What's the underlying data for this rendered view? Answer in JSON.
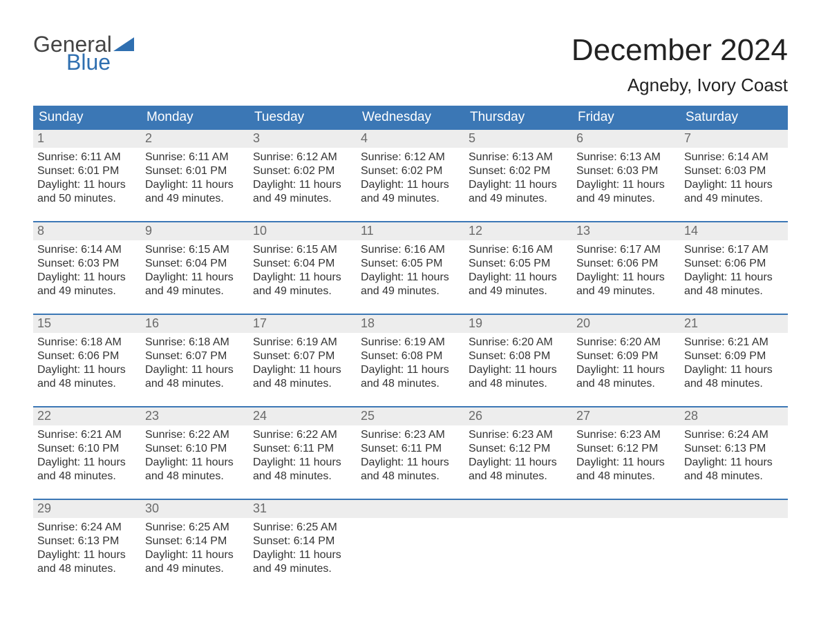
{
  "logo": {
    "text_general": "General",
    "text_blue": "Blue",
    "tri_color": "#2f6fb0"
  },
  "title": "December 2024",
  "location": "Agneby, Ivory Coast",
  "colors": {
    "header_bg": "#3b77b5",
    "header_text": "#ffffff",
    "daynum_bg": "#ededed",
    "daynum_text": "#6a6a6a",
    "body_text": "#333333",
    "week_border": "#3b77b5"
  },
  "dow": [
    "Sunday",
    "Monday",
    "Tuesday",
    "Wednesday",
    "Thursday",
    "Friday",
    "Saturday"
  ],
  "weeks": [
    [
      {
        "n": "1",
        "sunrise": "6:11 AM",
        "sunset": "6:01 PM",
        "dl": "11 hours and 50 minutes."
      },
      {
        "n": "2",
        "sunrise": "6:11 AM",
        "sunset": "6:01 PM",
        "dl": "11 hours and 49 minutes."
      },
      {
        "n": "3",
        "sunrise": "6:12 AM",
        "sunset": "6:02 PM",
        "dl": "11 hours and 49 minutes."
      },
      {
        "n": "4",
        "sunrise": "6:12 AM",
        "sunset": "6:02 PM",
        "dl": "11 hours and 49 minutes."
      },
      {
        "n": "5",
        "sunrise": "6:13 AM",
        "sunset": "6:02 PM",
        "dl": "11 hours and 49 minutes."
      },
      {
        "n": "6",
        "sunrise": "6:13 AM",
        "sunset": "6:03 PM",
        "dl": "11 hours and 49 minutes."
      },
      {
        "n": "7",
        "sunrise": "6:14 AM",
        "sunset": "6:03 PM",
        "dl": "11 hours and 49 minutes."
      }
    ],
    [
      {
        "n": "8",
        "sunrise": "6:14 AM",
        "sunset": "6:03 PM",
        "dl": "11 hours and 49 minutes."
      },
      {
        "n": "9",
        "sunrise": "6:15 AM",
        "sunset": "6:04 PM",
        "dl": "11 hours and 49 minutes."
      },
      {
        "n": "10",
        "sunrise": "6:15 AM",
        "sunset": "6:04 PM",
        "dl": "11 hours and 49 minutes."
      },
      {
        "n": "11",
        "sunrise": "6:16 AM",
        "sunset": "6:05 PM",
        "dl": "11 hours and 49 minutes."
      },
      {
        "n": "12",
        "sunrise": "6:16 AM",
        "sunset": "6:05 PM",
        "dl": "11 hours and 49 minutes."
      },
      {
        "n": "13",
        "sunrise": "6:17 AM",
        "sunset": "6:06 PM",
        "dl": "11 hours and 49 minutes."
      },
      {
        "n": "14",
        "sunrise": "6:17 AM",
        "sunset": "6:06 PM",
        "dl": "11 hours and 48 minutes."
      }
    ],
    [
      {
        "n": "15",
        "sunrise": "6:18 AM",
        "sunset": "6:06 PM",
        "dl": "11 hours and 48 minutes."
      },
      {
        "n": "16",
        "sunrise": "6:18 AM",
        "sunset": "6:07 PM",
        "dl": "11 hours and 48 minutes."
      },
      {
        "n": "17",
        "sunrise": "6:19 AM",
        "sunset": "6:07 PM",
        "dl": "11 hours and 48 minutes."
      },
      {
        "n": "18",
        "sunrise": "6:19 AM",
        "sunset": "6:08 PM",
        "dl": "11 hours and 48 minutes."
      },
      {
        "n": "19",
        "sunrise": "6:20 AM",
        "sunset": "6:08 PM",
        "dl": "11 hours and 48 minutes."
      },
      {
        "n": "20",
        "sunrise": "6:20 AM",
        "sunset": "6:09 PM",
        "dl": "11 hours and 48 minutes."
      },
      {
        "n": "21",
        "sunrise": "6:21 AM",
        "sunset": "6:09 PM",
        "dl": "11 hours and 48 minutes."
      }
    ],
    [
      {
        "n": "22",
        "sunrise": "6:21 AM",
        "sunset": "6:10 PM",
        "dl": "11 hours and 48 minutes."
      },
      {
        "n": "23",
        "sunrise": "6:22 AM",
        "sunset": "6:10 PM",
        "dl": "11 hours and 48 minutes."
      },
      {
        "n": "24",
        "sunrise": "6:22 AM",
        "sunset": "6:11 PM",
        "dl": "11 hours and 48 minutes."
      },
      {
        "n": "25",
        "sunrise": "6:23 AM",
        "sunset": "6:11 PM",
        "dl": "11 hours and 48 minutes."
      },
      {
        "n": "26",
        "sunrise": "6:23 AM",
        "sunset": "6:12 PM",
        "dl": "11 hours and 48 minutes."
      },
      {
        "n": "27",
        "sunrise": "6:23 AM",
        "sunset": "6:12 PM",
        "dl": "11 hours and 48 minutes."
      },
      {
        "n": "28",
        "sunrise": "6:24 AM",
        "sunset": "6:13 PM",
        "dl": "11 hours and 48 minutes."
      }
    ],
    [
      {
        "n": "29",
        "sunrise": "6:24 AM",
        "sunset": "6:13 PM",
        "dl": "11 hours and 48 minutes."
      },
      {
        "n": "30",
        "sunrise": "6:25 AM",
        "sunset": "6:14 PM",
        "dl": "11 hours and 49 minutes."
      },
      {
        "n": "31",
        "sunrise": "6:25 AM",
        "sunset": "6:14 PM",
        "dl": "11 hours and 49 minutes."
      },
      {
        "empty": true
      },
      {
        "empty": true
      },
      {
        "empty": true
      },
      {
        "empty": true
      }
    ]
  ],
  "labels": {
    "sunrise": "Sunrise:",
    "sunset": "Sunset:",
    "daylight": "Daylight:"
  }
}
